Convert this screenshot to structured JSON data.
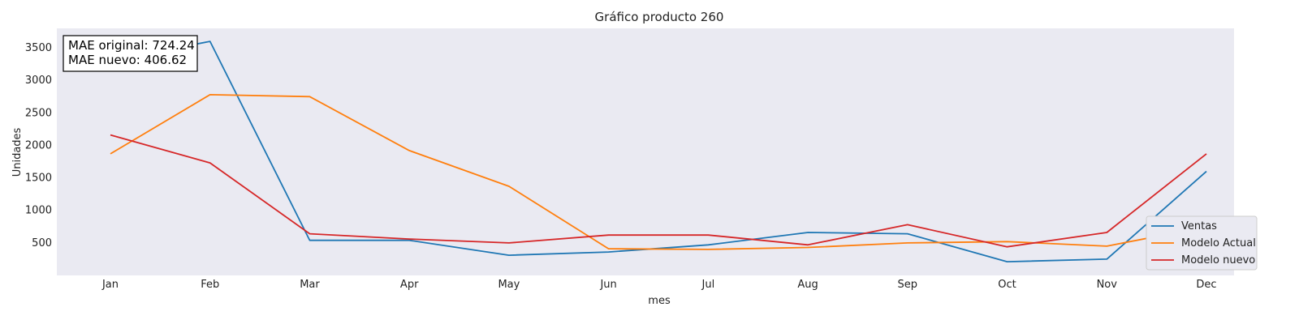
{
  "chart_data": {
    "type": "line",
    "title": "Gráfico producto 260",
    "xlabel": "mes",
    "ylabel": "Unidades",
    "categories": [
      "Jan",
      "Feb",
      "Mar",
      "Apr",
      "May",
      "Jun",
      "Jul",
      "Aug",
      "Sep",
      "Oct",
      "Nov",
      "Dec"
    ],
    "yticks": [
      500,
      1000,
      1500,
      2000,
      2500,
      3000,
      3500
    ],
    "ylim": [
      0,
      3800
    ],
    "grid": false,
    "legend_position": "bottom-right",
    "series": [
      {
        "name": "Ventas",
        "color": "#1f77b4",
        "values": [
          3300,
          3600,
          540,
          540,
          310,
          360,
          470,
          660,
          640,
          210,
          250,
          1600
        ]
      },
      {
        "name": "Modelo Actual",
        "color": "#ff7f0e",
        "values": [
          1870,
          2780,
          2750,
          1920,
          1370,
          410,
          400,
          430,
          500,
          520,
          450,
          750
        ]
      },
      {
        "name": "Modelo nuevo",
        "color": "#d62728",
        "values": [
          2160,
          1730,
          640,
          560,
          500,
          620,
          620,
          470,
          780,
          440,
          660,
          1870
        ]
      }
    ],
    "annotations": [
      "MAE original: 724.24",
      "MAE nuevo: 406.62"
    ]
  }
}
